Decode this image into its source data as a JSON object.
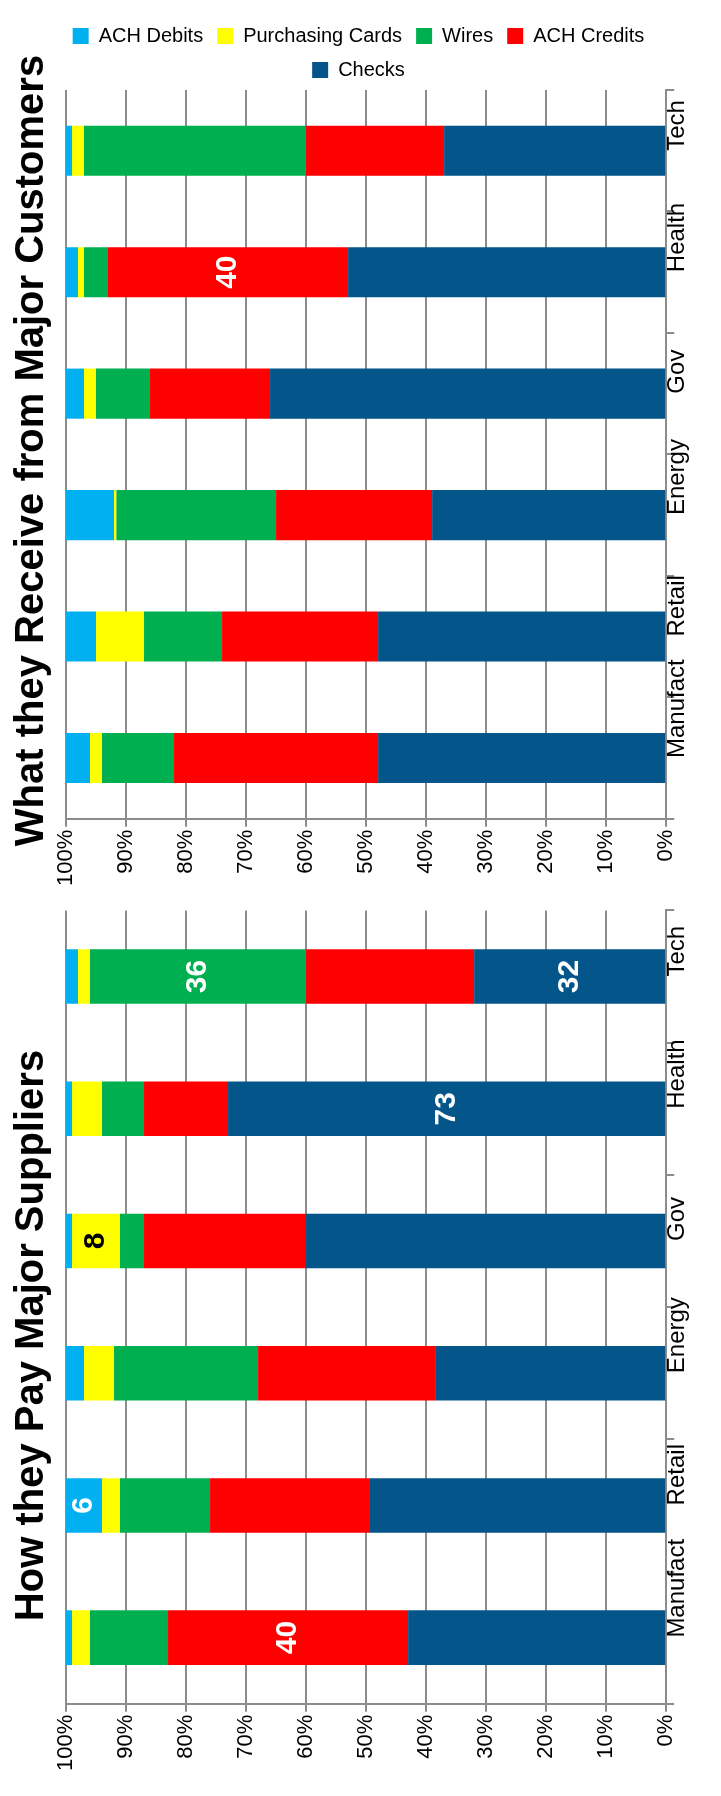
{
  "chart_data": [
    {
      "type": "bar",
      "title": "What they Receive from Major Customers",
      "orientation": "horizontal",
      "stacked": true,
      "categories": [
        "Tech",
        "Health",
        "Gov",
        "Energy",
        "Retail",
        "Manufact"
      ],
      "xlim": [
        100,
        0
      ],
      "xticks": [
        {
          "value": 100,
          "label": "100%"
        },
        {
          "value": 90,
          "label": "90%"
        },
        {
          "value": 80,
          "label": "80%"
        },
        {
          "value": 70,
          "label": "70%"
        },
        {
          "value": 60,
          "label": "60%"
        },
        {
          "value": 50,
          "label": "50%"
        },
        {
          "value": 40,
          "label": "40%"
        },
        {
          "value": 30,
          "label": "30%"
        },
        {
          "value": 20,
          "label": "20%"
        },
        {
          "value": 10,
          "label": "10%"
        },
        {
          "value": 0,
          "label": "0%"
        }
      ],
      "grid": "x",
      "legend": "top",
      "series": [
        {
          "name": "Checks",
          "color": "#03558a",
          "values": [
            37,
            53,
            66,
            39,
            48,
            48
          ]
        },
        {
          "name": "ACH Credits",
          "color": "#ff0000",
          "values": [
            23,
            40,
            20,
            26,
            26,
            34
          ],
          "value_labels": [
            null,
            "40",
            null,
            null,
            null,
            null
          ]
        },
        {
          "name": "Wires",
          "color": "#00b050",
          "values": [
            37,
            4,
            9,
            26.6,
            13,
            12
          ]
        },
        {
          "name": "Purchasing Cards",
          "color": "#ffff00",
          "values": [
            2,
            1,
            2,
            0.4,
            8,
            2
          ]
        },
        {
          "name": "ACH Debits",
          "color": "#00b0f0",
          "values": [
            1,
            2,
            3,
            8,
            5,
            4
          ]
        }
      ]
    },
    {
      "type": "bar",
      "title": "How they Pay Major Suppliers",
      "orientation": "horizontal",
      "stacked": true,
      "categories": [
        "Tech",
        "Health",
        "Gov",
        "Energy",
        "Retail",
        "Manufact"
      ],
      "xlim": [
        100,
        0
      ],
      "xticks": [
        {
          "value": 100,
          "label": "100%"
        },
        {
          "value": 90,
          "label": "90%"
        },
        {
          "value": 80,
          "label": "80%"
        },
        {
          "value": 70,
          "label": "70%"
        },
        {
          "value": 60,
          "label": "60%"
        },
        {
          "value": 50,
          "label": "50%"
        },
        {
          "value": 40,
          "label": "40%"
        },
        {
          "value": 30,
          "label": "30%"
        },
        {
          "value": 20,
          "label": "20%"
        },
        {
          "value": 10,
          "label": "10%"
        },
        {
          "value": 0,
          "label": "0%"
        }
      ],
      "grid": "x",
      "series": [
        {
          "color": "#03558a",
          "values": [
            32,
            73,
            60,
            38.5,
            49.5,
            43
          ],
          "value_labels": [
            "32",
            "73",
            null,
            null,
            null,
            null
          ]
        },
        {
          "color": "#ff0000",
          "values": [
            28,
            14,
            27,
            29.5,
            26.5,
            40
          ],
          "value_labels": [
            null,
            null,
            null,
            null,
            null,
            "40"
          ]
        },
        {
          "color": "#00b050",
          "values": [
            36,
            7,
            4,
            24,
            15,
            13
          ],
          "value_labels": [
            "36",
            null,
            null,
            null,
            null,
            null
          ]
        },
        {
          "color": "#ffff00",
          "values": [
            2,
            5,
            8,
            5,
            3,
            3
          ],
          "value_labels": [
            null,
            null,
            "8",
            null,
            null,
            null
          ]
        },
        {
          "color": "#00b0f0",
          "values": [
            2,
            1,
            1,
            3,
            6,
            1
          ],
          "value_labels": [
            null,
            null,
            null,
            null,
            "6",
            null
          ]
        }
      ]
    }
  ]
}
